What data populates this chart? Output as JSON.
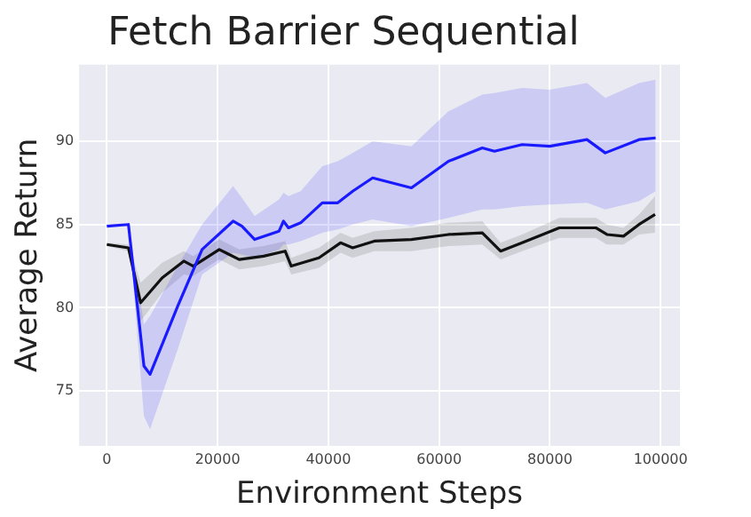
{
  "chart_data": {
    "type": "line",
    "title": "Fetch Barrier Sequential",
    "xlabel": "Environment Steps",
    "ylabel": "Average Return",
    "xlim": [
      -5000,
      103500
    ],
    "ylim": [
      71.7,
      94.6
    ],
    "xticks": [
      0,
      20000,
      40000,
      60000,
      80000,
      100000
    ],
    "yticks": [
      75,
      80,
      85,
      90
    ],
    "grid": true,
    "legend": false,
    "marker": "none",
    "line_style": "solid",
    "series": [
      {
        "color": "#1a1aff",
        "x": [
          0,
          3900,
          6700,
          7800,
          12800,
          17200,
          22800,
          24400,
          26700,
          31100,
          31900,
          32800,
          35000,
          38900,
          41700,
          44400,
          48000,
          55000,
          61700,
          67800,
          70000,
          75000,
          80000,
          86700,
          90000,
          96100,
          99100
        ],
        "values": [
          84.9,
          85.0,
          76.5,
          76.0,
          80.1,
          83.5,
          85.2,
          84.9,
          84.1,
          84.6,
          85.2,
          84.8,
          85.1,
          86.3,
          86.3,
          87.0,
          87.8,
          87.2,
          88.8,
          89.6,
          89.4,
          89.8,
          89.7,
          90.1,
          89.3,
          90.1,
          90.2
        ],
        "lower": [
          84.9,
          85.0,
          73.5,
          72.7,
          77.5,
          82.0,
          83.3,
          83.2,
          83.0,
          83.5,
          83.8,
          83.8,
          84.0,
          84.5,
          84.7,
          85.0,
          85.3,
          84.9,
          85.4,
          85.9,
          85.9,
          86.1,
          86.2,
          86.3,
          85.9,
          86.4,
          87.0
        ],
        "upper": [
          84.9,
          85.0,
          79.0,
          79.5,
          82.5,
          85.0,
          87.3,
          86.6,
          85.5,
          86.5,
          86.9,
          86.7,
          87.0,
          88.5,
          88.8,
          89.3,
          90.0,
          89.7,
          91.8,
          92.8,
          92.9,
          93.2,
          93.1,
          93.5,
          92.6,
          93.5,
          93.7
        ]
      },
      {
        "color": "#111111",
        "x": [
          0,
          3900,
          6100,
          10000,
          13900,
          15600,
          20300,
          23900,
          28300,
          32200,
          33300,
          38300,
          42200,
          44400,
          48300,
          55000,
          61700,
          67800,
          71100,
          75000,
          81700,
          88300,
          90300,
          93300,
          96100,
          99000
        ],
        "values": [
          83.8,
          83.6,
          80.3,
          81.8,
          82.8,
          82.5,
          83.5,
          82.9,
          83.1,
          83.4,
          82.5,
          83.0,
          83.9,
          83.6,
          84.0,
          84.1,
          84.4,
          84.5,
          83.4,
          83.9,
          84.8,
          84.8,
          84.4,
          84.3,
          85.0,
          85.6
        ],
        "lower": [
          83.7,
          83.4,
          79.2,
          80.9,
          82.0,
          81.9,
          82.9,
          82.3,
          82.5,
          82.8,
          82.0,
          82.4,
          83.3,
          83.0,
          83.4,
          83.4,
          83.7,
          83.8,
          82.9,
          83.4,
          84.2,
          84.2,
          83.8,
          83.8,
          84.4,
          84.5
        ],
        "upper": [
          83.9,
          83.8,
          81.5,
          82.7,
          83.4,
          83.1,
          84.1,
          83.5,
          83.7,
          84.0,
          83.0,
          83.6,
          84.5,
          84.2,
          84.6,
          84.8,
          85.1,
          85.2,
          83.9,
          84.4,
          85.4,
          85.4,
          85.0,
          84.8,
          85.6,
          86.7
        ]
      }
    ]
  }
}
